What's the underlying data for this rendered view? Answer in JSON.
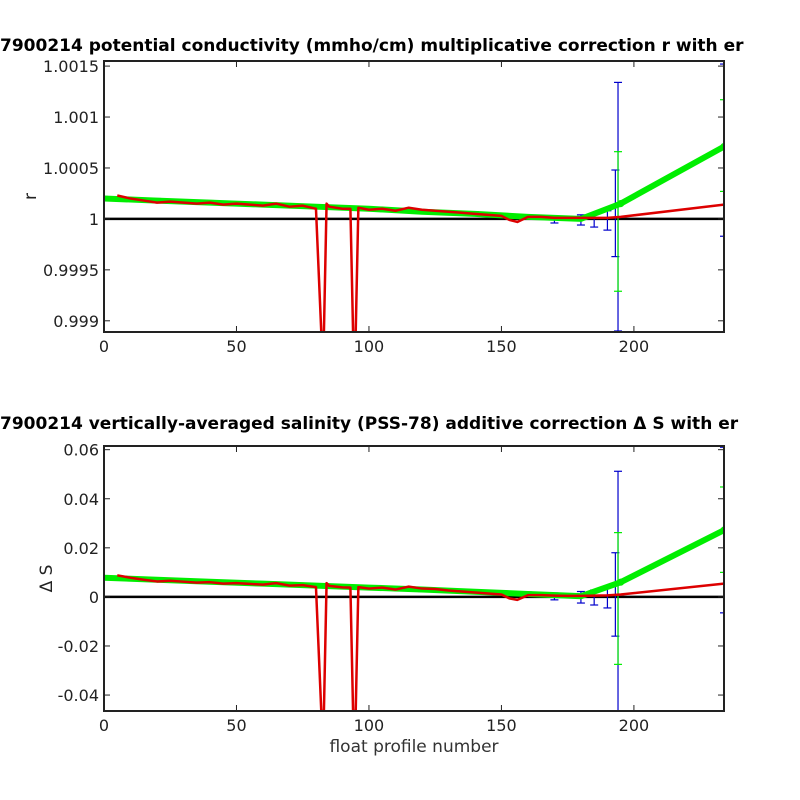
{
  "chart_data": [
    {
      "type": "line",
      "title": "7900214 potential conductivity (mmho/cm) multiplicative correction r with er",
      "xlabel": "",
      "ylabel": "r",
      "xlim": [
        0,
        234
      ],
      "ylim": [
        0.99889,
        1.00155
      ],
      "xticks": [
        0,
        50,
        100,
        150,
        200
      ],
      "yticks": [
        0.999,
        0.9995,
        1,
        1.0005,
        1.001,
        1.0015
      ],
      "ytick_labels": [
        "0.999",
        "0.9995",
        "1",
        "1.0005",
        "1.001",
        "1.0015"
      ],
      "colors": {
        "reference": "#000000",
        "fit": "#00ee00",
        "error_bars": "#0000cc",
        "estimate": "#dd0000"
      },
      "series": [
        {
          "role": "reference",
          "x": [
            0,
            234
          ],
          "values": [
            1.0,
            1.0
          ]
        },
        {
          "role": "estimate",
          "x": [
            5,
            10,
            15,
            20,
            25,
            30,
            35,
            40,
            45,
            50,
            55,
            60,
            65,
            70,
            75,
            80,
            82,
            83,
            84,
            85,
            90,
            93,
            94,
            95,
            96,
            100,
            105,
            110,
            115,
            120,
            125,
            130,
            135,
            140,
            145,
            150,
            153,
            156,
            160,
            165,
            170,
            175,
            180,
            185,
            190,
            195,
            234
          ],
          "values": [
            1.00023,
            1.0002,
            1.00018,
            1.00016,
            1.00017,
            1.00016,
            1.00015,
            1.00016,
            1.00014,
            1.00015,
            1.00014,
            1.00013,
            1.00015,
            1.00012,
            1.00013,
            1.0001,
            0.99889,
            0.99889,
            1.00015,
            1.00012,
            1.0001,
            1.0001,
            0.99889,
            0.99889,
            1.00011,
            1.00009,
            1.0001,
            1.00008,
            1.00011,
            1.00009,
            1.00008,
            1.00007,
            1.00006,
            1.00005,
            1.00004,
            1.00003,
            0.99999,
            0.99997,
            1.00002,
            1.00002,
            1.00001,
            1.00001,
            1.00001,
            1.00001,
            1.00001,
            1.00002,
            1.00014
          ]
        },
        {
          "role": "fit",
          "x": [
            0,
            20,
            40,
            60,
            80,
            100,
            120,
            140,
            160,
            180,
            195,
            234
          ],
          "values": [
            1.0002,
            1.00018,
            1.00016,
            1.00014,
            1.00012,
            1.0001,
            1.00007,
            1.00005,
            1.00002,
            1.0,
            1.00015,
            1.00071
          ]
        }
      ],
      "error_bars": {
        "x": [
          0,
          20,
          40,
          60,
          80,
          100,
          120,
          140,
          160,
          170,
          180,
          185,
          190,
          193,
          194,
          234
        ],
        "low": [
          1.00018,
          1.00016,
          1.00014,
          1.00012,
          1.0001,
          1.00008,
          1.00006,
          1.00003,
          1.0,
          0.99996,
          0.99994,
          0.99992,
          0.99989,
          0.99963,
          0.9989,
          0.99983
        ],
        "high": [
          1.00022,
          1.0002,
          1.00018,
          1.00016,
          1.00014,
          1.00012,
          1.00009,
          1.00007,
          1.00004,
          1.00003,
          1.00004,
          1.00005,
          1.00008,
          1.00048,
          1.00134,
          1.00152
        ]
      },
      "fit_error_bars": {
        "x": [
          194,
          234
        ],
        "low": [
          0.99929,
          1.00027
        ],
        "high": [
          1.00066,
          1.00117
        ]
      }
    },
    {
      "type": "line",
      "title": "7900214 vertically-averaged salinity (PSS-78) additive correction Δ S with er",
      "xlabel": "float profile number",
      "ylabel": "Δ S",
      "xlim": [
        0,
        234
      ],
      "ylim": [
        -0.0465,
        0.0615
      ],
      "xticks": [
        0,
        50,
        100,
        150,
        200
      ],
      "yticks": [
        -0.04,
        -0.02,
        0,
        0.02,
        0.04,
        0.06
      ],
      "ytick_labels": [
        "-0.04",
        "-0.02",
        "0",
        "0.02",
        "0.04",
        "0.06"
      ],
      "colors": {
        "reference": "#000000",
        "fit": "#00ee00",
        "error_bars": "#0000cc",
        "estimate": "#dd0000"
      },
      "series": [
        {
          "role": "reference",
          "x": [
            0,
            234
          ],
          "values": [
            0,
            0
          ]
        },
        {
          "role": "estimate",
          "x": [
            5,
            10,
            15,
            20,
            25,
            30,
            35,
            40,
            45,
            50,
            55,
            60,
            65,
            70,
            75,
            80,
            82,
            83,
            84,
            85,
            90,
            93,
            94,
            95,
            96,
            100,
            105,
            110,
            115,
            120,
            125,
            130,
            135,
            140,
            145,
            150,
            153,
            156,
            160,
            165,
            170,
            175,
            180,
            185,
            190,
            195,
            234
          ],
          "values": [
            0.0088,
            0.0078,
            0.007,
            0.0063,
            0.0066,
            0.0062,
            0.0058,
            0.006,
            0.0054,
            0.0056,
            0.0053,
            0.005,
            0.0056,
            0.0046,
            0.0048,
            0.004,
            -0.0465,
            -0.0465,
            0.0056,
            0.0045,
            0.0039,
            0.0038,
            -0.0465,
            -0.0465,
            0.004,
            0.0034,
            0.0038,
            0.003,
            0.0042,
            0.0034,
            0.0032,
            0.0026,
            0.0022,
            0.0018,
            0.0014,
            0.001,
            -0.0006,
            -0.0012,
            0.0007,
            0.0007,
            0.0005,
            0.0004,
            0.0004,
            0.0005,
            0.0006,
            0.001,
            0.0054
          ]
        },
        {
          "role": "fit",
          "x": [
            0,
            20,
            40,
            60,
            80,
            100,
            120,
            140,
            160,
            180,
            195,
            234
          ],
          "values": [
            0.0078,
            0.007,
            0.0062,
            0.0054,
            0.0046,
            0.0038,
            0.003,
            0.0021,
            0.0012,
            0.0003,
            0.006,
            0.0272
          ]
        }
      ],
      "error_bars": {
        "x": [
          0,
          20,
          40,
          60,
          80,
          100,
          120,
          140,
          160,
          170,
          180,
          185,
          190,
          193,
          194,
          234
        ],
        "low": [
          0.007,
          0.0062,
          0.0054,
          0.0046,
          0.0038,
          0.003,
          0.0022,
          0.0013,
          0.0004,
          -0.0012,
          -0.0025,
          -0.0033,
          -0.0045,
          -0.016,
          -0.0465,
          -0.0065
        ],
        "high": [
          0.0086,
          0.0078,
          0.007,
          0.0062,
          0.0054,
          0.0046,
          0.0038,
          0.0029,
          0.002,
          0.0016,
          0.0022,
          0.0028,
          0.004,
          0.018,
          0.0512,
          0.061
        ]
      },
      "fit_error_bars": {
        "x": [
          194,
          234
        ],
        "low": [
          -0.0275,
          0.01
        ],
        "high": [
          0.0262,
          0.0448
        ]
      }
    }
  ]
}
